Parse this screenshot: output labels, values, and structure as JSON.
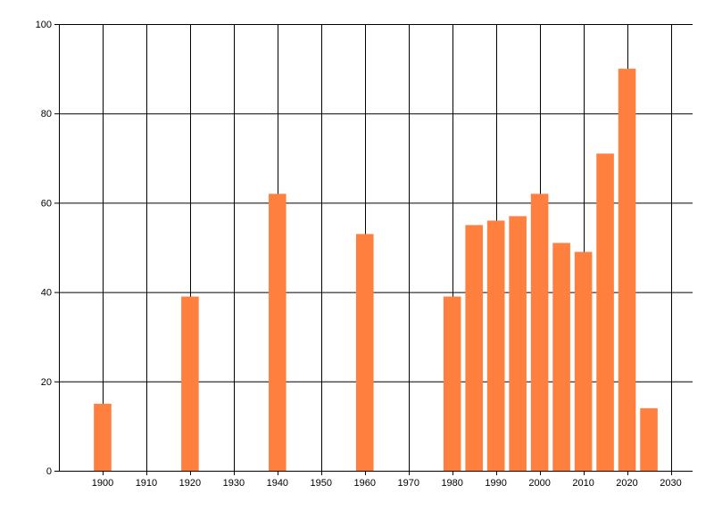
{
  "chart_data": {
    "type": "bar",
    "x": [
      1900,
      1920,
      1940,
      1960,
      1980,
      1985,
      1990,
      1995,
      2000,
      2005,
      2010,
      2015,
      2020,
      2025
    ],
    "values": [
      15,
      39,
      62,
      53,
      39,
      55,
      56,
      57,
      62,
      51,
      49,
      71,
      90,
      14
    ],
    "title": "",
    "xlabel": "",
    "ylabel": "",
    "xlim": [
      1890,
      2035
    ],
    "ylim": [
      0,
      100
    ],
    "x_ticks": [
      1900,
      1910,
      1920,
      1930,
      1940,
      1950,
      1960,
      1970,
      1980,
      1990,
      2000,
      2010,
      2020,
      2030
    ],
    "y_ticks": [
      0,
      20,
      40,
      60,
      80,
      100
    ],
    "bar_width_years": 4,
    "grid": true,
    "legend": "none",
    "colors": {
      "bar": "#ff7f3f",
      "grid": "#000000",
      "axis": "#000000"
    }
  }
}
